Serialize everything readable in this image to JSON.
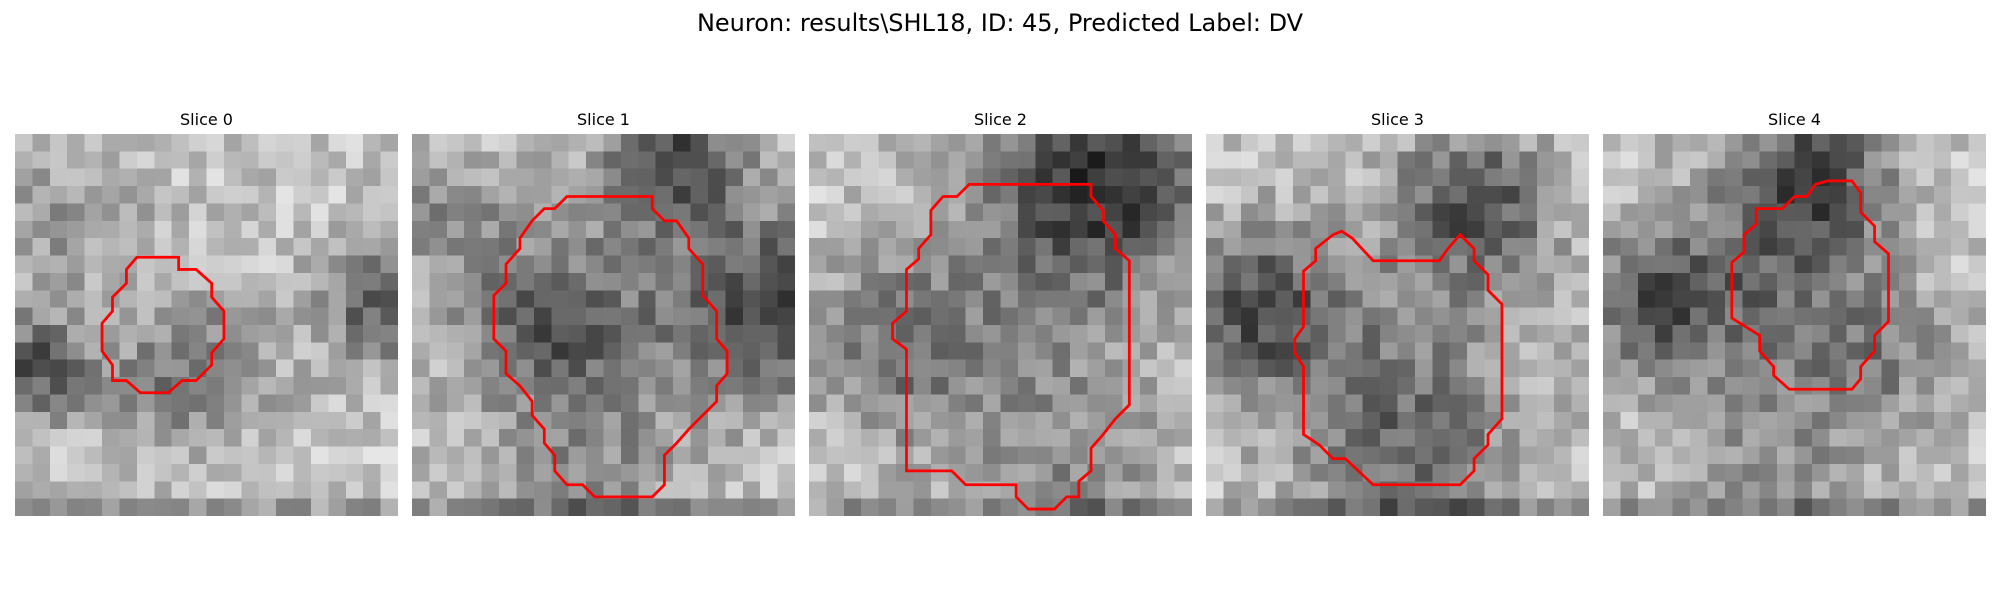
{
  "figure": {
    "title": "Neuron: results\\SHL18, ID: 45, Predicted Label: DV"
  },
  "outline_color": "#ff0000",
  "panels": [
    {
      "label": "Slice 0"
    },
    {
      "label": "Slice 1"
    },
    {
      "label": "Slice 2"
    },
    {
      "label": "Slice 3"
    },
    {
      "label": "Slice 4"
    }
  ]
}
